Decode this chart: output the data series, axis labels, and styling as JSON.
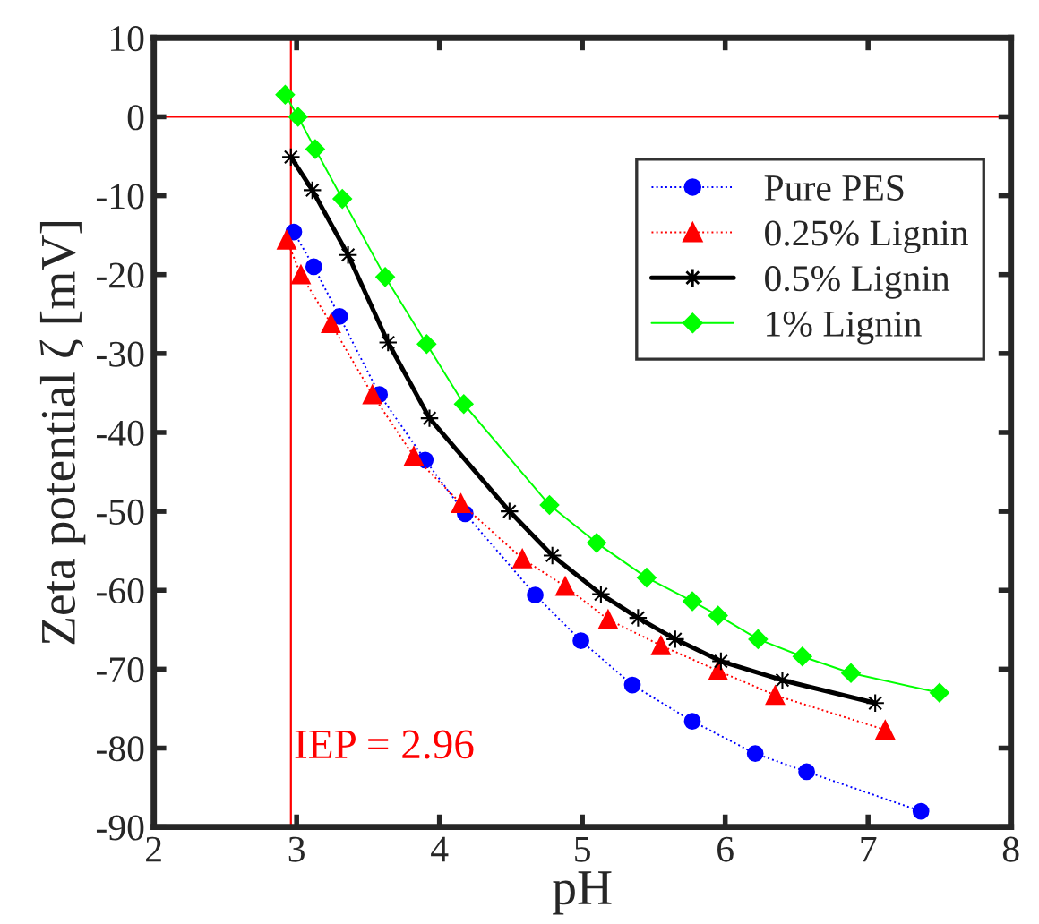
{
  "chart_data": {
    "type": "line",
    "xlabel": "pH",
    "ylabel": "Zeta potential ζ [mV]",
    "xlim": [
      2,
      8
    ],
    "xticks": [
      2,
      3,
      4,
      5,
      6,
      7,
      8
    ],
    "ylim": [
      -90,
      10
    ],
    "yticks": [
      -90,
      -80,
      -70,
      -60,
      -50,
      -40,
      -30,
      -20,
      -10,
      0,
      10
    ],
    "grid": false,
    "legend": "top right",
    "ref_lines": [
      {
        "axis": "x",
        "value": 2.96,
        "label": "IEP = 2.96",
        "color": "#ff0000"
      },
      {
        "axis": "y",
        "value": 0,
        "color": "#ff0000"
      }
    ],
    "series": [
      {
        "name": "Pure PES",
        "color": "#0000ff",
        "marker": "circle",
        "line_style": "dotted",
        "x": [
          2.98,
          3.12,
          3.3,
          3.58,
          3.9,
          4.18,
          4.67,
          4.99,
          5.35,
          5.77,
          6.21,
          6.57,
          7.37
        ],
        "values": [
          -14.6,
          -19,
          -25.3,
          -35.2,
          -43.5,
          -50.3,
          -60.6,
          -66.4,
          -72,
          -76.6,
          -80.7,
          -83,
          -88
        ]
      },
      {
        "name": "0.25% Lignin",
        "color": "#ff0000",
        "marker": "triangle",
        "line_style": "dotted",
        "x": [
          2.93,
          3.03,
          3.24,
          3.53,
          3.82,
          4.15,
          4.58,
          4.88,
          5.18,
          5.55,
          5.95,
          6.35,
          7.12
        ],
        "values": [
          -15.6,
          -20,
          -26.2,
          -35.2,
          -43,
          -49,
          -56,
          -59.5,
          -63.7,
          -67,
          -70.2,
          -73.3,
          -77.7
        ]
      },
      {
        "name": "0.5% Lignin",
        "color": "#000000",
        "marker": "star",
        "line_style": "solid",
        "x": [
          2.96,
          3.11,
          3.36,
          3.64,
          3.93,
          4.49,
          4.79,
          5.13,
          5.39,
          5.65,
          5.97,
          6.4,
          7.05
        ],
        "values": [
          -5.1,
          -9.3,
          -17.5,
          -28.6,
          -38.2,
          -50,
          -55.6,
          -60.5,
          -63.5,
          -66.2,
          -69,
          -71.4,
          -74.3
        ]
      },
      {
        "name": "1% Lignin",
        "color": "#00ff00",
        "marker": "diamond",
        "line_style": "solid",
        "x": [
          2.92,
          3.01,
          3.13,
          3.32,
          3.62,
          3.91,
          4.17,
          4.77,
          5.1,
          5.45,
          5.77,
          5.95,
          6.23,
          6.54,
          6.88,
          7.5
        ],
        "values": [
          2.8,
          0,
          -4.1,
          -10.4,
          -20.3,
          -28.8,
          -36.4,
          -49.2,
          -54,
          -58.4,
          -61.4,
          -63.2,
          -66.2,
          -68.4,
          -70.5,
          -73
        ]
      }
    ]
  }
}
